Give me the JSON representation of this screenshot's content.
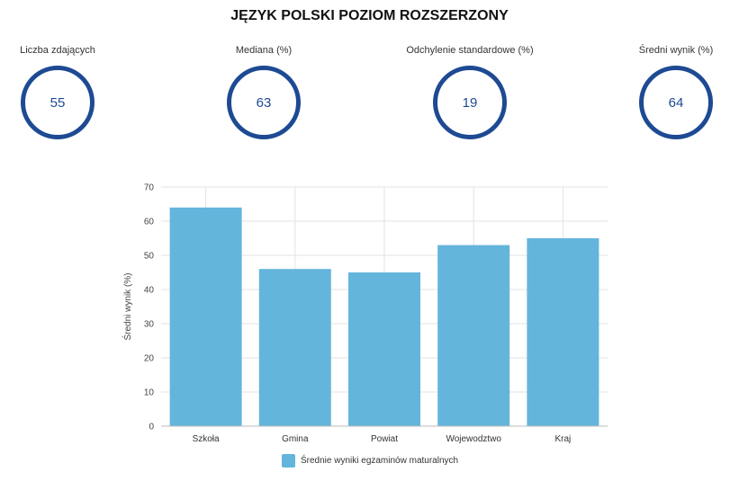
{
  "header": {
    "title": "JĘZYK POLSKI POZIOM ROZSZERZONY"
  },
  "stats": [
    {
      "label": "Liczba zdających",
      "value": "55"
    },
    {
      "label": "Mediana (%)",
      "value": "63"
    },
    {
      "label": "Odchylenie standardowe (%)",
      "value": "19"
    },
    {
      "label": "Średni wynik (%)",
      "value": "64"
    }
  ],
  "colors": {
    "ring": "#1d4a93",
    "bar": "#64b5dc",
    "grid": "#e3e3e3"
  },
  "chart_data": {
    "type": "bar",
    "title": "",
    "xlabel": "",
    "ylabel": "Średni wynik (%)",
    "categories": [
      "Szkoła",
      "Gmina",
      "Powiat",
      "Wojewodztwo",
      "Kraj"
    ],
    "series": [
      {
        "name": "Średnie wyniki egzaminów maturalnych",
        "values": [
          64,
          46,
          45,
          53,
          55
        ]
      }
    ],
    "ylim": [
      0,
      70
    ],
    "yticks": [
      0,
      10,
      20,
      30,
      40,
      50,
      60,
      70
    ],
    "grid": true,
    "legend": "bottom"
  }
}
